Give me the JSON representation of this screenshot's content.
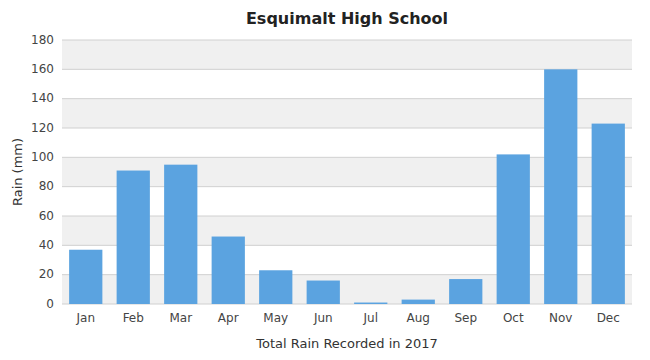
{
  "chart_data": {
    "type": "bar",
    "title": "Esquimalt High School",
    "xlabel": "Total Rain Recorded in 2017",
    "ylabel": "Rain (mm)",
    "categories": [
      "Jan",
      "Feb",
      "Mar",
      "Apr",
      "May",
      "Jun",
      "Jul",
      "Aug",
      "Sep",
      "Oct",
      "Nov",
      "Dec"
    ],
    "values": [
      37,
      91,
      95,
      46,
      23,
      16,
      1,
      3,
      17,
      102,
      160,
      123
    ],
    "color": "#5ba3e0",
    "ylim": [
      0,
      180
    ],
    "yticks": [
      0,
      20,
      40,
      60,
      80,
      100,
      120,
      140,
      160,
      180
    ],
    "grid": true
  }
}
